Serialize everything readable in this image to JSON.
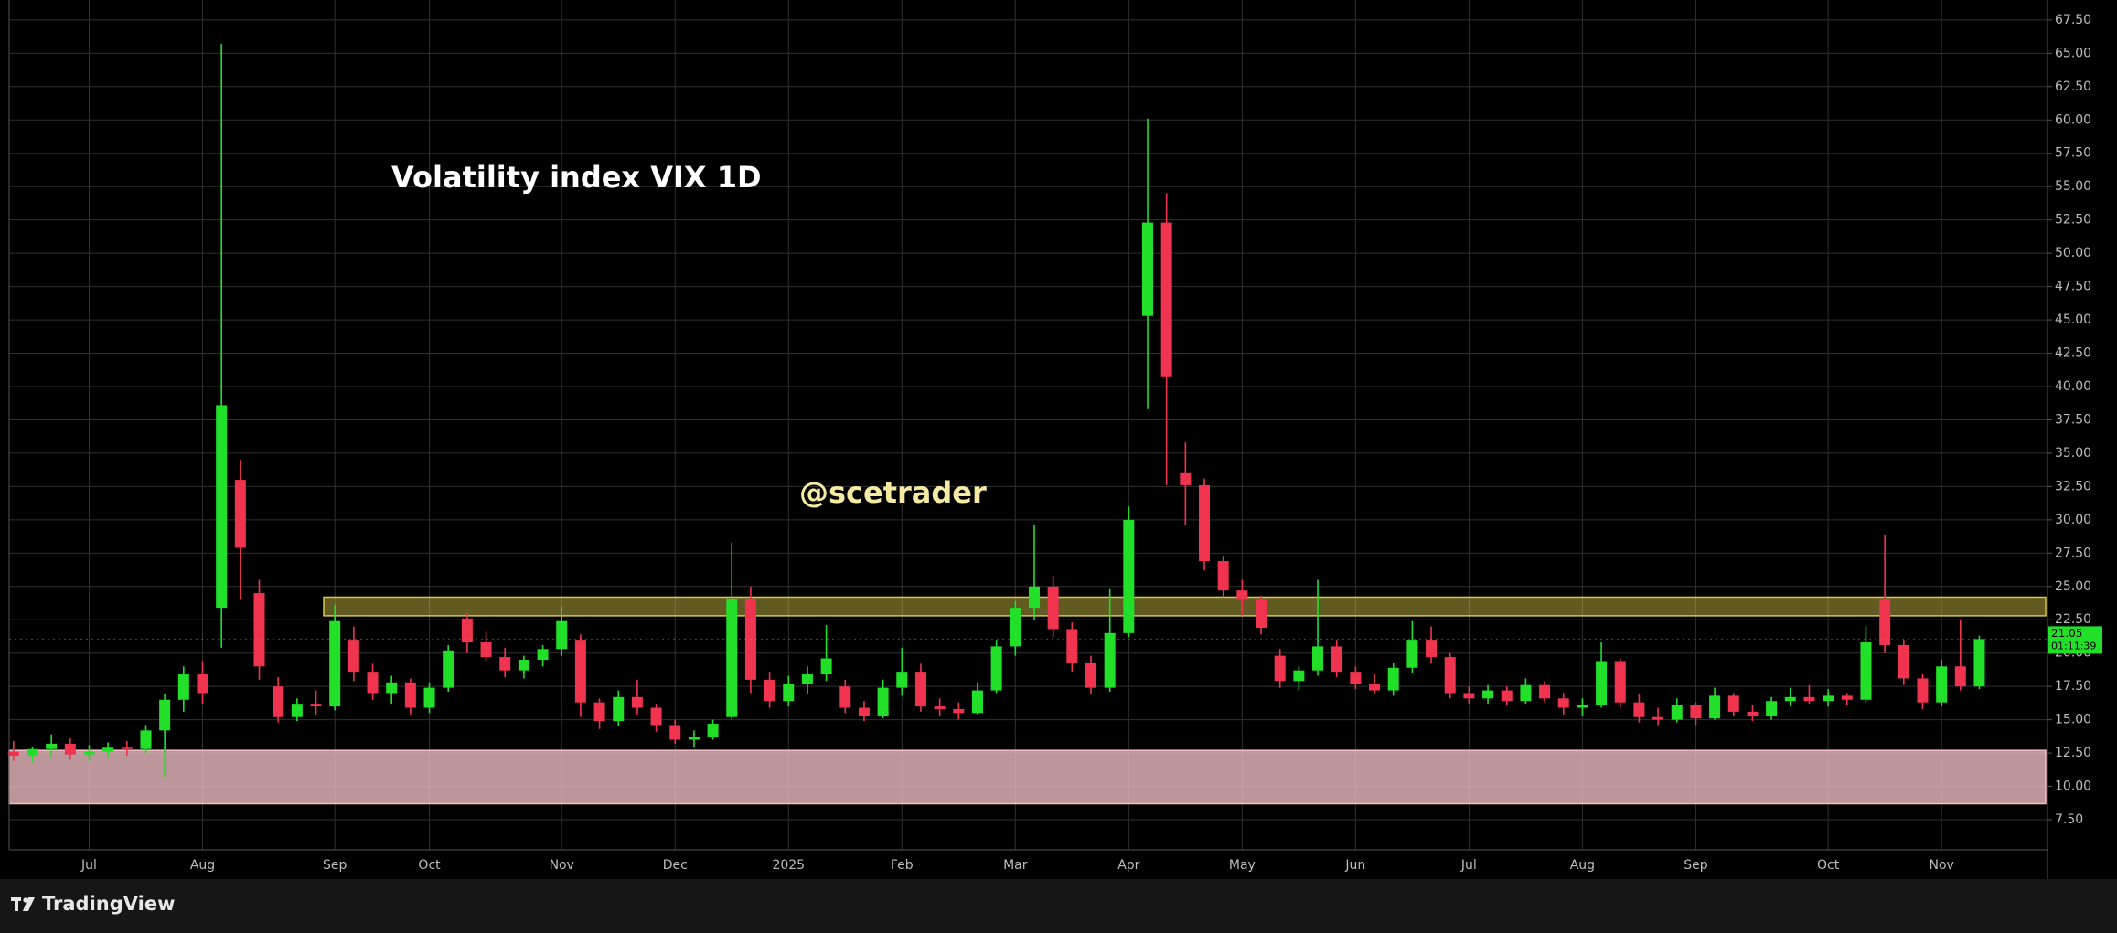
{
  "chart_data": {
    "type": "candlestick",
    "title": "Volatility index VIX 1D",
    "watermark": "@scetrader",
    "brand": "TradingView",
    "up_color": "#22e02a",
    "down_color": "#f0344f",
    "grid": true,
    "last_price": 21.05,
    "countdown": "01:11:39",
    "ylim": [
      5.24,
      69
    ],
    "yticks": [
      {
        "value": 7.5,
        "label": "7.50"
      },
      {
        "value": 10,
        "label": "10.00"
      },
      {
        "value": 12.5,
        "label": "12.50"
      },
      {
        "value": 15,
        "label": "15.00"
      },
      {
        "value": 17.5,
        "label": "17.50"
      },
      {
        "value": 20,
        "label": "20.00"
      },
      {
        "value": 22.5,
        "label": "22.50"
      },
      {
        "value": 25,
        "label": "25.00"
      },
      {
        "value": 27.5,
        "label": "27.50"
      },
      {
        "value": 30,
        "label": "30.00"
      },
      {
        "value": 32.5,
        "label": "32.50"
      },
      {
        "value": 35,
        "label": "35.00"
      },
      {
        "value": 37.5,
        "label": "37.50"
      },
      {
        "value": 40,
        "label": "40.00"
      },
      {
        "value": 42.5,
        "label": "42.50"
      },
      {
        "value": 45,
        "label": "45.00"
      },
      {
        "value": 47.5,
        "label": "47.50"
      },
      {
        "value": 50,
        "label": "50.00"
      },
      {
        "value": 52.5,
        "label": "52.50"
      },
      {
        "value": 55,
        "label": "55.00"
      },
      {
        "value": 57.5,
        "label": "57.50"
      },
      {
        "value": 60,
        "label": "60.00"
      },
      {
        "value": 62.5,
        "label": "62.50"
      },
      {
        "value": 65,
        "label": "65.00"
      },
      {
        "value": 67.5,
        "label": "67.50"
      }
    ],
    "zones": [
      {
        "low": 22.8,
        "high": 24.2,
        "color": "#d8c84a"
      },
      {
        "low": 8.7,
        "high": 12.7,
        "color": "#f2c0c6"
      }
    ],
    "categories": [
      null,
      null,
      null,
      null,
      "Jul",
      null,
      null,
      null,
      null,
      null,
      "Aug",
      null,
      null,
      null,
      null,
      null,
      null,
      "Sep",
      null,
      null,
      null,
      null,
      "Oct",
      null,
      null,
      null,
      null,
      null,
      null,
      "Nov",
      null,
      null,
      null,
      null,
      null,
      "Dec",
      null,
      null,
      null,
      null,
      null,
      "2025",
      null,
      null,
      null,
      null,
      null,
      "Feb",
      null,
      null,
      null,
      null,
      null,
      "Mar",
      null,
      null,
      null,
      null,
      null,
      "Apr",
      null,
      null,
      null,
      null,
      null,
      "May",
      null,
      null,
      null,
      null,
      null,
      "Jun",
      null,
      null,
      null,
      null,
      null,
      "Jul",
      null,
      null,
      null,
      null,
      null,
      "Aug",
      null,
      null,
      null,
      null,
      null,
      "Sep",
      null,
      null,
      null,
      null,
      null,
      null,
      "Oct",
      null,
      null,
      null,
      null,
      null,
      "Nov",
      null,
      null
    ],
    "ohlc": [
      [
        12.6,
        13.4,
        11.9,
        12.3
      ],
      [
        12.3,
        13.0,
        11.8,
        12.8
      ],
      [
        12.8,
        13.9,
        12.2,
        13.2
      ],
      [
        13.2,
        13.6,
        12.0,
        12.4
      ],
      [
        12.4,
        13.1,
        11.9,
        12.6
      ],
      [
        12.6,
        13.3,
        12.1,
        12.9
      ],
      [
        12.9,
        13.4,
        12.3,
        12.8
      ],
      [
        12.8,
        14.6,
        12.5,
        14.2
      ],
      [
        14.2,
        16.9,
        10.7,
        16.5
      ],
      [
        16.5,
        19.0,
        15.6,
        18.4
      ],
      [
        18.4,
        19.4,
        16.2,
        17.0
      ],
      [
        23.4,
        65.7,
        20.4,
        38.6
      ],
      [
        33.0,
        34.5,
        24.0,
        27.9
      ],
      [
        24.5,
        25.5,
        18.0,
        19.0
      ],
      [
        17.5,
        18.2,
        14.8,
        15.2
      ],
      [
        15.2,
        16.6,
        14.9,
        16.2
      ],
      [
        16.2,
        17.2,
        15.4,
        16.0
      ],
      [
        16.0,
        23.6,
        15.7,
        22.4
      ],
      [
        21.0,
        22.0,
        17.9,
        18.6
      ],
      [
        18.6,
        19.2,
        16.5,
        17.0
      ],
      [
        17.0,
        18.3,
        16.2,
        17.8
      ],
      [
        17.8,
        18.1,
        15.4,
        15.9
      ],
      [
        15.9,
        17.8,
        15.5,
        17.4
      ],
      [
        17.4,
        20.6,
        17.1,
        20.2
      ],
      [
        22.6,
        23.0,
        20.0,
        20.8
      ],
      [
        20.8,
        21.6,
        19.4,
        19.7
      ],
      [
        19.7,
        20.4,
        18.2,
        18.7
      ],
      [
        18.7,
        19.8,
        18.1,
        19.5
      ],
      [
        19.5,
        20.6,
        19.0,
        20.3
      ],
      [
        20.3,
        23.5,
        19.8,
        22.4
      ],
      [
        21.0,
        21.4,
        15.2,
        16.3
      ],
      [
        16.3,
        16.6,
        14.3,
        14.9
      ],
      [
        14.9,
        17.2,
        14.5,
        16.7
      ],
      [
        16.7,
        18.0,
        15.4,
        15.9
      ],
      [
        15.9,
        16.2,
        14.1,
        14.6
      ],
      [
        14.6,
        15.0,
        13.2,
        13.5
      ],
      [
        13.5,
        14.2,
        12.9,
        13.7
      ],
      [
        13.7,
        15.0,
        13.5,
        14.7
      ],
      [
        15.2,
        28.3,
        15.0,
        24.1
      ],
      [
        24.1,
        25.0,
        17.0,
        18.0
      ],
      [
        18.0,
        18.6,
        15.9,
        16.4
      ],
      [
        16.4,
        18.3,
        16.0,
        17.7
      ],
      [
        17.7,
        19.0,
        16.9,
        18.4
      ],
      [
        18.4,
        22.1,
        17.9,
        19.6
      ],
      [
        17.5,
        18.0,
        15.5,
        15.9
      ],
      [
        15.9,
        16.4,
        14.9,
        15.3
      ],
      [
        15.3,
        18.0,
        15.1,
        17.4
      ],
      [
        17.4,
        20.4,
        16.8,
        18.6
      ],
      [
        18.6,
        19.2,
        15.6,
        16.0
      ],
      [
        16.0,
        16.6,
        15.3,
        15.8
      ],
      [
        15.8,
        16.3,
        15.0,
        15.5
      ],
      [
        15.5,
        17.8,
        15.4,
        17.2
      ],
      [
        17.2,
        21.0,
        17.0,
        20.5
      ],
      [
        20.5,
        23.9,
        19.8,
        23.4
      ],
      [
        23.4,
        29.6,
        22.5,
        25.0
      ],
      [
        25.0,
        25.8,
        21.2,
        21.8
      ],
      [
        21.8,
        22.3,
        18.6,
        19.3
      ],
      [
        19.3,
        19.8,
        16.9,
        17.4
      ],
      [
        17.4,
        24.8,
        17.1,
        21.5
      ],
      [
        21.5,
        31.0,
        21.2,
        30.0
      ],
      [
        45.3,
        60.1,
        38.3,
        52.3
      ],
      [
        52.3,
        54.5,
        32.6,
        40.7
      ],
      [
        33.5,
        35.8,
        29.6,
        32.6
      ],
      [
        32.6,
        33.1,
        26.2,
        26.9
      ],
      [
        26.9,
        27.3,
        24.2,
        24.7
      ],
      [
        24.7,
        25.5,
        22.8,
        24.0
      ],
      [
        24.0,
        24.3,
        21.4,
        21.9
      ],
      [
        19.8,
        20.3,
        17.4,
        17.9
      ],
      [
        17.9,
        19.0,
        17.2,
        18.7
      ],
      [
        18.7,
        25.5,
        18.3,
        20.5
      ],
      [
        20.5,
        21.0,
        18.2,
        18.6
      ],
      [
        18.6,
        19.0,
        17.3,
        17.7
      ],
      [
        17.7,
        18.4,
        16.9,
        17.2
      ],
      [
        17.2,
        19.3,
        16.8,
        18.9
      ],
      [
        18.9,
        22.4,
        18.5,
        21.0
      ],
      [
        21.0,
        22.0,
        19.2,
        19.7
      ],
      [
        19.7,
        20.0,
        16.6,
        17.0
      ],
      [
        17.0,
        17.5,
        16.2,
        16.6
      ],
      [
        16.6,
        17.6,
        16.2,
        17.2
      ],
      [
        17.2,
        17.5,
        16.1,
        16.4
      ],
      [
        16.4,
        18.1,
        16.2,
        17.6
      ],
      [
        17.6,
        17.9,
        16.3,
        16.6
      ],
      [
        16.6,
        17.0,
        15.4,
        15.9
      ],
      [
        15.9,
        16.6,
        15.3,
        16.1
      ],
      [
        16.1,
        20.8,
        15.9,
        19.4
      ],
      [
        19.4,
        19.6,
        15.9,
        16.3
      ],
      [
        16.3,
        16.9,
        14.8,
        15.2
      ],
      [
        15.2,
        15.9,
        14.6,
        15.0
      ],
      [
        15.0,
        16.6,
        14.8,
        16.1
      ],
      [
        16.1,
        16.3,
        14.6,
        15.1
      ],
      [
        15.1,
        17.4,
        15.0,
        16.8
      ],
      [
        16.8,
        17.0,
        15.3,
        15.6
      ],
      [
        15.6,
        16.1,
        14.9,
        15.3
      ],
      [
        15.3,
        16.7,
        15.0,
        16.4
      ],
      [
        16.4,
        17.4,
        16.0,
        16.7
      ],
      [
        16.7,
        17.6,
        16.2,
        16.4
      ],
      [
        16.4,
        17.3,
        16.0,
        16.8
      ],
      [
        16.8,
        17.0,
        16.1,
        16.5
      ],
      [
        16.5,
        22.0,
        16.3,
        20.8
      ],
      [
        24.0,
        28.9,
        20.0,
        20.6
      ],
      [
        20.6,
        21.0,
        17.6,
        18.1
      ],
      [
        18.1,
        18.4,
        15.8,
        16.3
      ],
      [
        16.3,
        19.5,
        16.0,
        19.0
      ],
      [
        19.0,
        22.5,
        17.2,
        17.5
      ],
      [
        17.5,
        21.3,
        17.3,
        21.05
      ]
    ]
  }
}
